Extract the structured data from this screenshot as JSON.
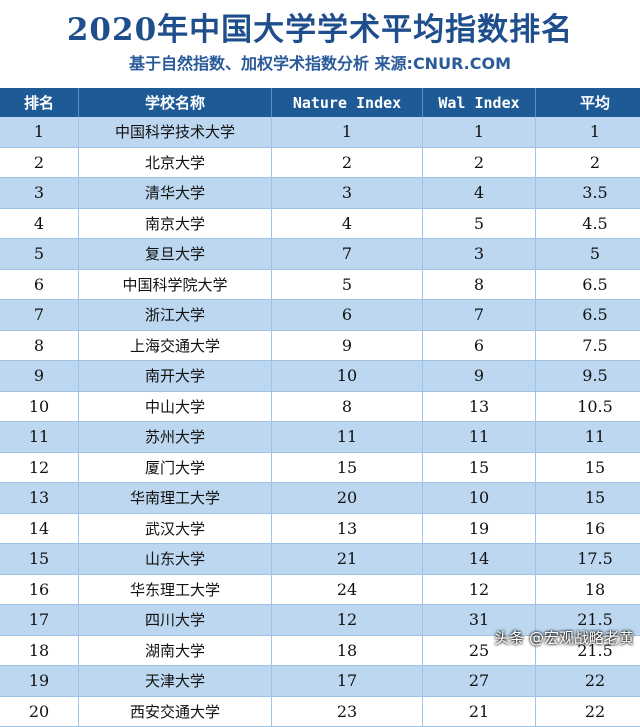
{
  "title": "2020年中国大学学术平均指数排名",
  "subtitle": "基于自然指数、加权学术指数分析  来源:CNUR.COM",
  "headers": [
    "排名",
    "学校名称",
    "Nature Index",
    "Wal Index",
    "平均"
  ],
  "rows": [
    [
      "1",
      "中国科学技术大学",
      "1",
      "1",
      "1"
    ],
    [
      "2",
      "北京大学",
      "2",
      "2",
      "2"
    ],
    [
      "3",
      "清华大学",
      "3",
      "4",
      "3.5"
    ],
    [
      "4",
      "南京大学",
      "4",
      "5",
      "4.5"
    ],
    [
      "5",
      "复旦大学",
      "7",
      "3",
      "5"
    ],
    [
      "6",
      "中国科学院大学",
      "5",
      "8",
      "6.5"
    ],
    [
      "7",
      "浙江大学",
      "6",
      "7",
      "6.5"
    ],
    [
      "8",
      "上海交通大学",
      "9",
      "6",
      "7.5"
    ],
    [
      "9",
      "南开大学",
      "10",
      "9",
      "9.5"
    ],
    [
      "10",
      "中山大学",
      "8",
      "13",
      "10.5"
    ],
    [
      "11",
      "苏州大学",
      "11",
      "11",
      "11"
    ],
    [
      "12",
      "厦门大学",
      "15",
      "15",
      "15"
    ],
    [
      "13",
      "华南理工大学",
      "20",
      "10",
      "15"
    ],
    [
      "14",
      "武汉大学",
      "13",
      "19",
      "16"
    ],
    [
      "15",
      "山东大学",
      "21",
      "14",
      "17.5"
    ],
    [
      "16",
      "华东理工大学",
      "24",
      "12",
      "18"
    ],
    [
      "17",
      "四川大学",
      "12",
      "31",
      "21.5"
    ],
    [
      "18",
      "湖南大学",
      "18",
      "25",
      "21.5"
    ],
    [
      "19",
      "天津大学",
      "17",
      "27",
      "22"
    ],
    [
      "20",
      "西安交通大学",
      "23",
      "21",
      "22"
    ]
  ],
  "watermark": "头条 @宏观战略老黄"
}
